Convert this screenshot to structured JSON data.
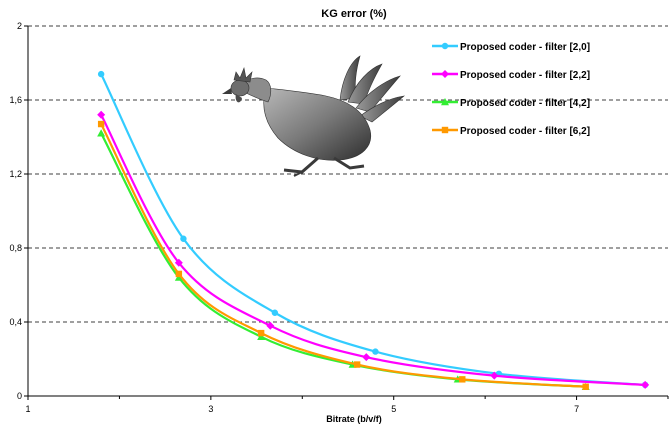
{
  "chart_data": {
    "type": "line",
    "title": "KG error (%)",
    "xlabel": "Bitrate (b/v/f)",
    "ylabel": "",
    "xlim": [
      1,
      8
    ],
    "ylim": [
      0,
      2
    ],
    "x_ticks": [
      "1",
      "3",
      "5",
      "7"
    ],
    "y_ticks": [
      "0",
      "0,4",
      "0,8",
      "1,2",
      "1,6",
      "2"
    ],
    "grid": "horizontal-dashed",
    "legend_position": "top-right",
    "illustration": "rooster-3d-model",
    "series": [
      {
        "name": "Proposed coder - filter [2,0]",
        "color": "#33ccff",
        "marker": "circle",
        "x": [
          1.8,
          2.7,
          3.7,
          4.8,
          6.15,
          7.75
        ],
        "y": [
          1.74,
          0.85,
          0.45,
          0.24,
          0.12,
          0.06
        ]
      },
      {
        "name": "Proposed coder - filter [2,2]",
        "color": "#ff00ff",
        "marker": "diamond",
        "x": [
          1.8,
          2.65,
          3.65,
          4.7,
          6.1,
          7.75
        ],
        "y": [
          1.52,
          0.72,
          0.38,
          0.21,
          0.11,
          0.06
        ]
      },
      {
        "name": "Proposed coder - filter [4,2]",
        "color": "#33ee33",
        "marker": "triangle",
        "x": [
          1.8,
          2.65,
          3.55,
          4.55,
          5.7,
          7.1
        ],
        "y": [
          1.42,
          0.64,
          0.32,
          0.17,
          0.09,
          0.05
        ]
      },
      {
        "name": "Proposed coder - filter [6,2]",
        "color": "#ff9900",
        "marker": "square",
        "x": [
          1.8,
          2.65,
          3.55,
          4.6,
          5.75,
          7.1
        ],
        "y": [
          1.47,
          0.66,
          0.34,
          0.17,
          0.09,
          0.05
        ]
      }
    ]
  }
}
